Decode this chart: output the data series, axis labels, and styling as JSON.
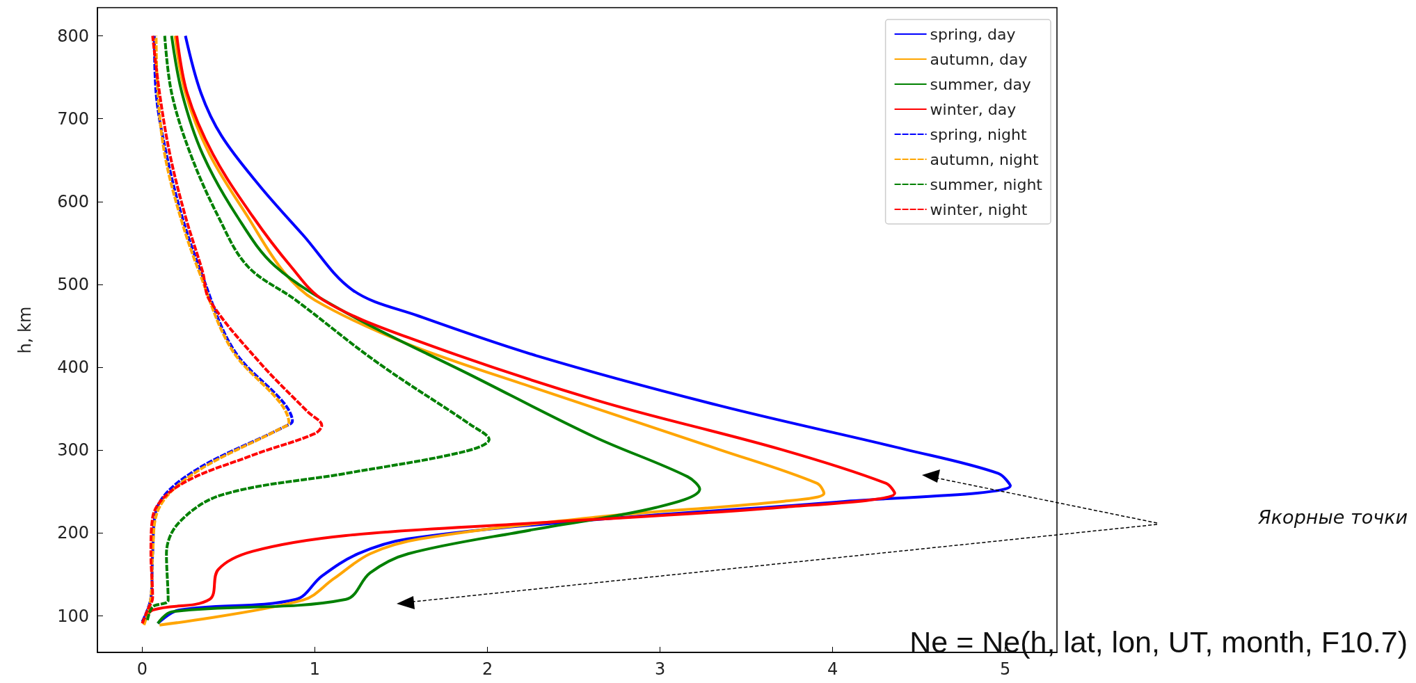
{
  "chart_data": {
    "type": "line",
    "ylabel": "h, km",
    "xlim": [
      -0.26,
      5.3
    ],
    "ylim": [
      56,
      834
    ],
    "xticks": [
      0,
      1,
      2,
      3,
      4,
      5
    ],
    "yticks": [
      100,
      200,
      300,
      400,
      500,
      600,
      700,
      800
    ],
    "grid": false,
    "legend": "top right",
    "annotations": [
      "Якорные точки",
      "Ne = Ne(h, lat, lon, UT, month, F10.7)"
    ],
    "series": [
      {
        "name": "spring, day",
        "color": "#0000ff",
        "line_style": "solid",
        "x": [
          0.09,
          0.21,
          0.89,
          1.04,
          1.25,
          1.54,
          2.62,
          4.06,
          5.03,
          4.96,
          4.42,
          3.34,
          2.3,
          1.6,
          1.22,
          0.93,
          0.68,
          0.46,
          0.34,
          0.25
        ],
        "values": [
          91,
          107,
          120,
          148,
          175,
          193,
          216,
          238,
          257,
          272,
          301,
          354,
          413,
          462,
          493,
          560,
          619,
          679,
          731,
          800
        ]
      },
      {
        "name": "autumn, day",
        "color": "#ffa500",
        "line_style": "solid",
        "x": [
          0.1,
          0.93,
          1.11,
          1.32,
          1.61,
          2.62,
          3.7,
          3.95,
          3.91,
          3.34,
          2.26,
          1.54,
          1.0,
          0.82,
          0.61,
          0.39,
          0.25,
          0.19
        ],
        "values": [
          89,
          119,
          145,
          175,
          193,
          219,
          238,
          248,
          260,
          301,
          376,
          428,
          481,
          515,
          582,
          657,
          731,
          800
        ]
      },
      {
        "name": "summer, day",
        "color": "#008000",
        "line_style": "solid",
        "x": [
          0.09,
          0.17,
          1.18,
          1.32,
          1.54,
          2.26,
          2.98,
          3.23,
          3.16,
          2.62,
          1.9,
          1.18,
          0.77,
          0.55,
          0.35,
          0.23,
          0.17
        ],
        "values": [
          91,
          105,
          120,
          152,
          175,
          204,
          231,
          253,
          268,
          316,
          391,
          466,
          522,
          582,
          657,
          731,
          800
        ]
      },
      {
        "name": "winter, day",
        "color": "#ff0000",
        "line_style": "solid",
        "x": [
          0,
          0.06,
          0.39,
          0.44,
          0.64,
          1.18,
          2.26,
          3.7,
          4.36,
          4.31,
          3.7,
          2.62,
          1.54,
          1.05,
          0.86,
          0.64,
          0.41,
          0.26,
          0.2
        ],
        "values": [
          91,
          107,
          120,
          156,
          178,
          197,
          212,
          231,
          248,
          260,
          301,
          361,
          436,
          481,
          522,
          582,
          657,
          731,
          800
        ]
      },
      {
        "name": "spring, night",
        "color": "#0000ff",
        "line_style": "dashed",
        "x": [
          0,
          0.05,
          0.06,
          0.08,
          0.28,
          0.82,
          0.87,
          0.82,
          0.53,
          0.34,
          0.23,
          0.14,
          0.08,
          0.07
        ],
        "values": [
          93,
          122,
          175,
          227,
          272,
          328,
          335,
          357,
          421,
          515,
          582,
          657,
          731,
          800
        ]
      },
      {
        "name": "autumn, night",
        "color": "#ffa500",
        "line_style": "dashed",
        "x": [
          0.01,
          0.05,
          0.06,
          0.09,
          0.3,
          0.8,
          0.85,
          0.8,
          0.52,
          0.33,
          0.22,
          0.13,
          0.09,
          0.08
        ],
        "values": [
          89,
          122,
          175,
          227,
          272,
          326,
          333,
          357,
          421,
          515,
          582,
          657,
          731,
          800
        ]
      },
      {
        "name": "summer, night",
        "color": "#008000",
        "line_style": "dashed",
        "x": [
          0.03,
          0.06,
          0.15,
          0.14,
          0.21,
          0.46,
          1.18,
          1.86,
          2.01,
          1.9,
          1.36,
          0.89,
          0.61,
          0.44,
          0.28,
          0.17,
          0.13
        ],
        "values": [
          95,
          111,
          119,
          175,
          212,
          246,
          272,
          298,
          313,
          331,
          406,
          481,
          522,
          582,
          657,
          731,
          800
        ]
      },
      {
        "name": "winter, night",
        "color": "#ff0000",
        "line_style": "dashed",
        "x": [
          0,
          0.03,
          0.06,
          0.05,
          0.06,
          0.21,
          0.64,
          1.0,
          1.04,
          0.96,
          0.68,
          0.39,
          0.35,
          0.25,
          0.16,
          0.1,
          0.06
        ],
        "values": [
          91,
          107,
          122,
          175,
          219,
          257,
          294,
          320,
          330,
          346,
          406,
          481,
          515,
          582,
          657,
          731,
          800
        ]
      }
    ]
  }
}
